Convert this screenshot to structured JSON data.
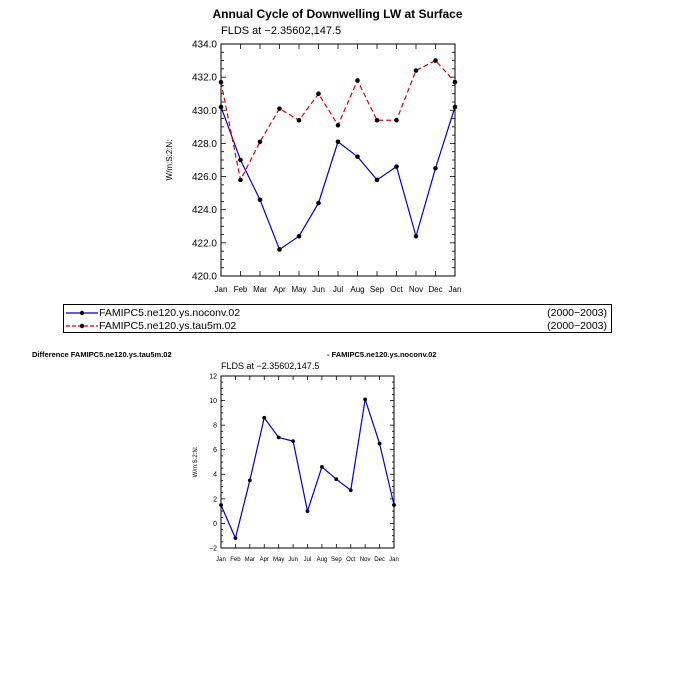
{
  "top_title": "Annual Cycle of Downwelling LW at Surface",
  "top_subtitle": "FLDS at −2.35602,147.5",
  "diff_left": "Difference FAMIPC5.ne120.ys.tau5m.02",
  "diff_right": "- FAMIPC5.ne120.ys.noconv.02",
  "bottom_subtitle": "FLDS at −2.35602,147.5",
  "legend": [
    {
      "label": "FAMIPC5.ne120.ys.noconv.02",
      "years": "(2000−2003)",
      "color": "#0000cc",
      "dash": false
    },
    {
      "label": "FAMIPC5.ne120.ys.tau5m.02",
      "years": "(2000−2003)",
      "color": "#dd0000",
      "dash": true
    }
  ],
  "chart_data": [
    {
      "type": "line",
      "title": "Annual Cycle of Downwelling LW at Surface",
      "ylabel": "W/m:S:2:N:",
      "categories": [
        "Jan",
        "Feb",
        "Mar",
        "Apr",
        "May",
        "Jun",
        "Jul",
        "Aug",
        "Sep",
        "Oct",
        "Nov",
        "Dec",
        "Jan"
      ],
      "ylim": [
        420,
        434
      ],
      "yticks": [
        420.0,
        422.0,
        424.0,
        426.0,
        428.0,
        430.0,
        432.0,
        434.0
      ],
      "series": [
        {
          "name": "FAMIPC5.ne120.ys.noconv.02",
          "color": "#0000cc",
          "values": [
            430.2,
            427.0,
            424.6,
            421.6,
            422.4,
            424.4,
            428.1,
            427.2,
            425.8,
            426.6,
            422.4,
            426.5,
            430.2
          ]
        },
        {
          "name": "FAMIPC5.ne120.ys.tau5m.02",
          "color": "#dd0000",
          "values": [
            431.7,
            425.8,
            428.1,
            430.1,
            429.4,
            431.0,
            429.1,
            431.8,
            429.4,
            429.4,
            432.4,
            433.0,
            431.7
          ]
        }
      ]
    },
    {
      "type": "line",
      "ylabel": "W/m:S:2:N:",
      "categories": [
        "Jan",
        "Feb",
        "Mar",
        "Apr",
        "May",
        "Jun",
        "Jul",
        "Aug",
        "Sep",
        "Oct",
        "Nov",
        "Dec",
        "Jan"
      ],
      "ylim": [
        -2,
        12
      ],
      "yticks": [
        -2,
        0,
        2,
        4,
        6,
        8,
        10,
        12
      ],
      "series": [
        {
          "color": "#0000cc",
          "values": [
            1.5,
            -1.2,
            3.5,
            8.6,
            7.0,
            6.7,
            1.0,
            4.6,
            3.6,
            2.7,
            10.1,
            6.5,
            1.5
          ]
        }
      ]
    }
  ]
}
